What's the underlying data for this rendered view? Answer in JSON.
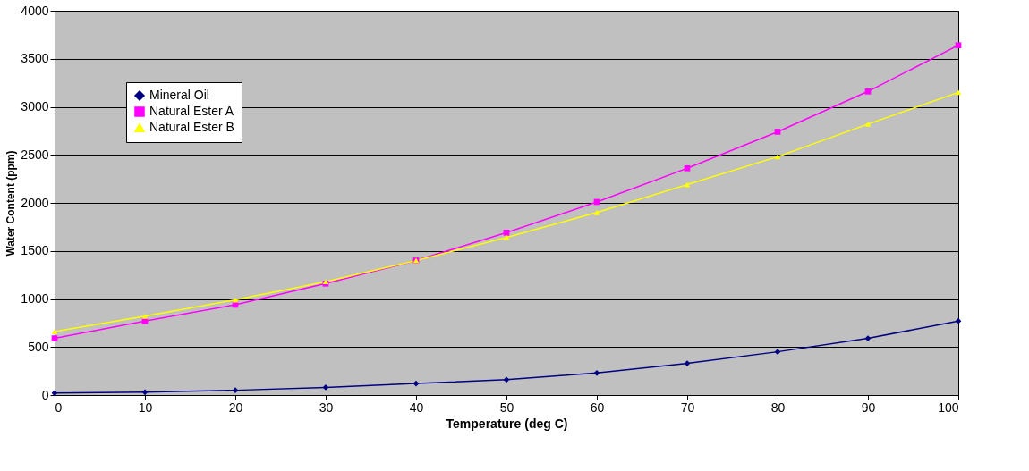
{
  "chart_data": {
    "type": "line",
    "xlabel": "Temperature (deg C)",
    "ylabel": "Water Content (ppm)",
    "x": [
      0,
      10,
      20,
      30,
      40,
      50,
      60,
      70,
      80,
      90,
      100
    ],
    "series": [
      {
        "name": "Mineral Oil",
        "color": "#000080",
        "marker": "diamond",
        "values": [
          20,
          30,
          50,
          80,
          120,
          160,
          230,
          330,
          450,
          590,
          770
        ]
      },
      {
        "name": "Natural Ester A",
        "color": "#ff00ff",
        "marker": "square",
        "values": [
          590,
          770,
          940,
          1160,
          1400,
          1690,
          2010,
          2360,
          2740,
          3160,
          3640
        ]
      },
      {
        "name": "Natural Ester B",
        "color": "#ffff00",
        "marker": "triangle",
        "values": [
          660,
          820,
          990,
          1180,
          1400,
          1640,
          1900,
          2190,
          2480,
          2820,
          3150
        ]
      }
    ],
    "xlim": [
      0,
      100
    ],
    "xticks": [
      0,
      10,
      20,
      30,
      40,
      50,
      60,
      70,
      80,
      90,
      100
    ],
    "ylim": [
      0,
      4000
    ],
    "yticks": [
      0,
      500,
      1000,
      1500,
      2000,
      2500,
      3000,
      3500,
      4000
    ],
    "grid": "y",
    "legend": "top left"
  }
}
